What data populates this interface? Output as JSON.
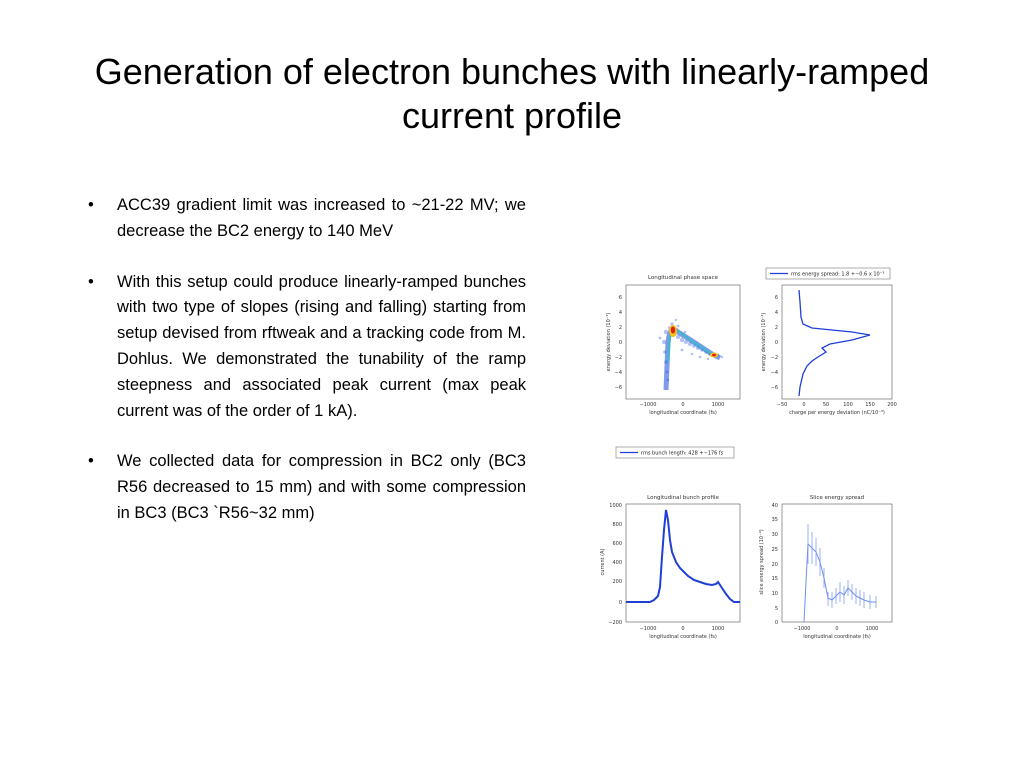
{
  "slide": {
    "title_line1": "Generation of electron bunches with linearly-ramped",
    "title_line2": "current profile",
    "bullets": [
      {
        "text": "ACC39 gradient limit was increased to ~21-22 MV; we decrease the BC2 energy to 140 MeV"
      },
      {
        "text": "With this setup could produce linearly-ramped bunches with two type of slopes (rising and falling) starting from setup devised from rftweak and a tracking code from M. Dohlus. We demonstrated the tunability of the ramp steepness and associated peak current (max peak current was of the order of 1 kA)."
      },
      {
        "text": "We collected data for compression in BC2 only (BC3 R56 decreased to 15 mm) and with some compression in BC3 (BC3 `R56~32 mm)"
      }
    ],
    "bullet_symbol": "•"
  },
  "figure": {
    "legend_top": "rms energy spread: 1.8 +−0.6 x 10⁻³",
    "legend_mid": "rms bunch length: 428 +−176 fs",
    "panels": {
      "phase_space": {
        "title": "Longitudinal phase space",
        "xlabel": "longitudinal coordinate (fs)",
        "ylabel": "energy deviation (10⁻³)",
        "xticks": [
          "−1000",
          "0",
          "1000"
        ],
        "yticks": [
          "6",
          "4",
          "2",
          "0",
          "−2",
          "−4",
          "−6"
        ]
      },
      "energy_proj": {
        "xlabel": "charge per energy deviation (nC/10⁻³)",
        "ylabel": "energy deviation (10⁻³)",
        "xticks": [
          "−50",
          "0",
          "50",
          "100",
          "150",
          "200"
        ],
        "yticks": [
          "6",
          "4",
          "2",
          "0",
          "−2",
          "−4",
          "−6"
        ]
      },
      "bunch_profile": {
        "title": "Longitudinal bunch profile",
        "xlabel": "longitudinal coordinate (fs)",
        "ylabel": "current (A)",
        "xticks": [
          "−1000",
          "0",
          "1000"
        ],
        "yticks": [
          "1000",
          "800",
          "600",
          "400",
          "200",
          "0",
          "−200"
        ]
      },
      "slice_spread": {
        "title": "Slice energy spread",
        "xlabel": "longitudinal coordinate (fs)",
        "ylabel": "slice energy spread (10⁻⁴)",
        "xticks": [
          "−1000",
          "0",
          "1000"
        ],
        "yticks": [
          "40",
          "35",
          "30",
          "25",
          "20",
          "15",
          "10",
          "5",
          "0"
        ]
      }
    },
    "colors": {
      "trace": "#1f3fd6",
      "hot": "#e02010",
      "mid": "#f0c020",
      "frame": "#555555"
    }
  }
}
